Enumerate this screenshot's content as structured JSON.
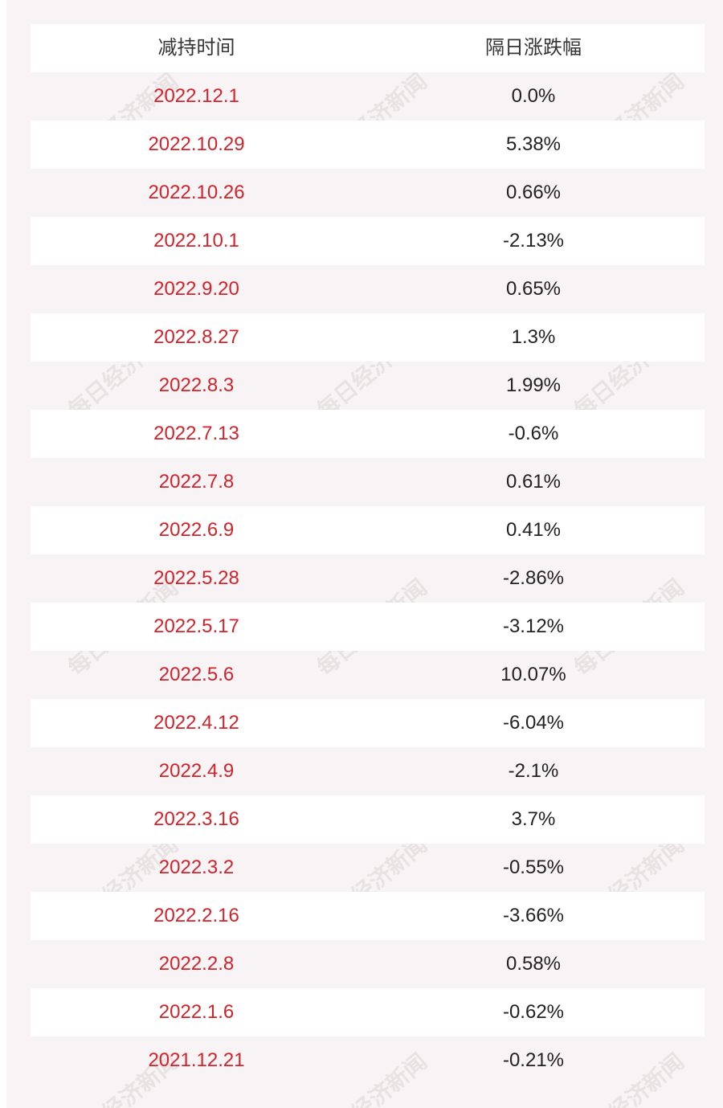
{
  "headers": {
    "date": "减持时间",
    "change": "隔日涨跌幅"
  },
  "watermark": "每日经济新闻",
  "rows": [
    {
      "date": "2022.12.1",
      "change": "0.0%"
    },
    {
      "date": "2022.10.29",
      "change": "5.38%"
    },
    {
      "date": "2022.10.26",
      "change": "0.66%"
    },
    {
      "date": "2022.10.1",
      "change": "-2.13%"
    },
    {
      "date": "2022.9.20",
      "change": "0.65%"
    },
    {
      "date": "2022.8.27",
      "change": "1.3%"
    },
    {
      "date": "2022.8.3",
      "change": "1.99%"
    },
    {
      "date": "2022.7.13",
      "change": "-0.6%"
    },
    {
      "date": "2022.7.8",
      "change": "0.61%"
    },
    {
      "date": "2022.6.9",
      "change": "0.41%"
    },
    {
      "date": "2022.5.28",
      "change": "-2.86%"
    },
    {
      "date": "2022.5.17",
      "change": "-3.12%"
    },
    {
      "date": "2022.5.6",
      "change": "10.07%"
    },
    {
      "date": "2022.4.12",
      "change": "-6.04%"
    },
    {
      "date": "2022.4.9",
      "change": "-2.1%"
    },
    {
      "date": "2022.3.16",
      "change": "3.7%"
    },
    {
      "date": "2022.3.2",
      "change": "-0.55%"
    },
    {
      "date": "2022.2.16",
      "change": "-3.66%"
    },
    {
      "date": "2022.2.8",
      "change": "0.58%"
    },
    {
      "date": "2022.1.6",
      "change": "-0.62%"
    },
    {
      "date": "2021.12.21",
      "change": "-0.21%"
    }
  ],
  "colors": {
    "date_text": "#d2232a",
    "value_text": "#222222",
    "panel_bg": "#f8f4f5",
    "stripe_bg": "#ffffff"
  }
}
